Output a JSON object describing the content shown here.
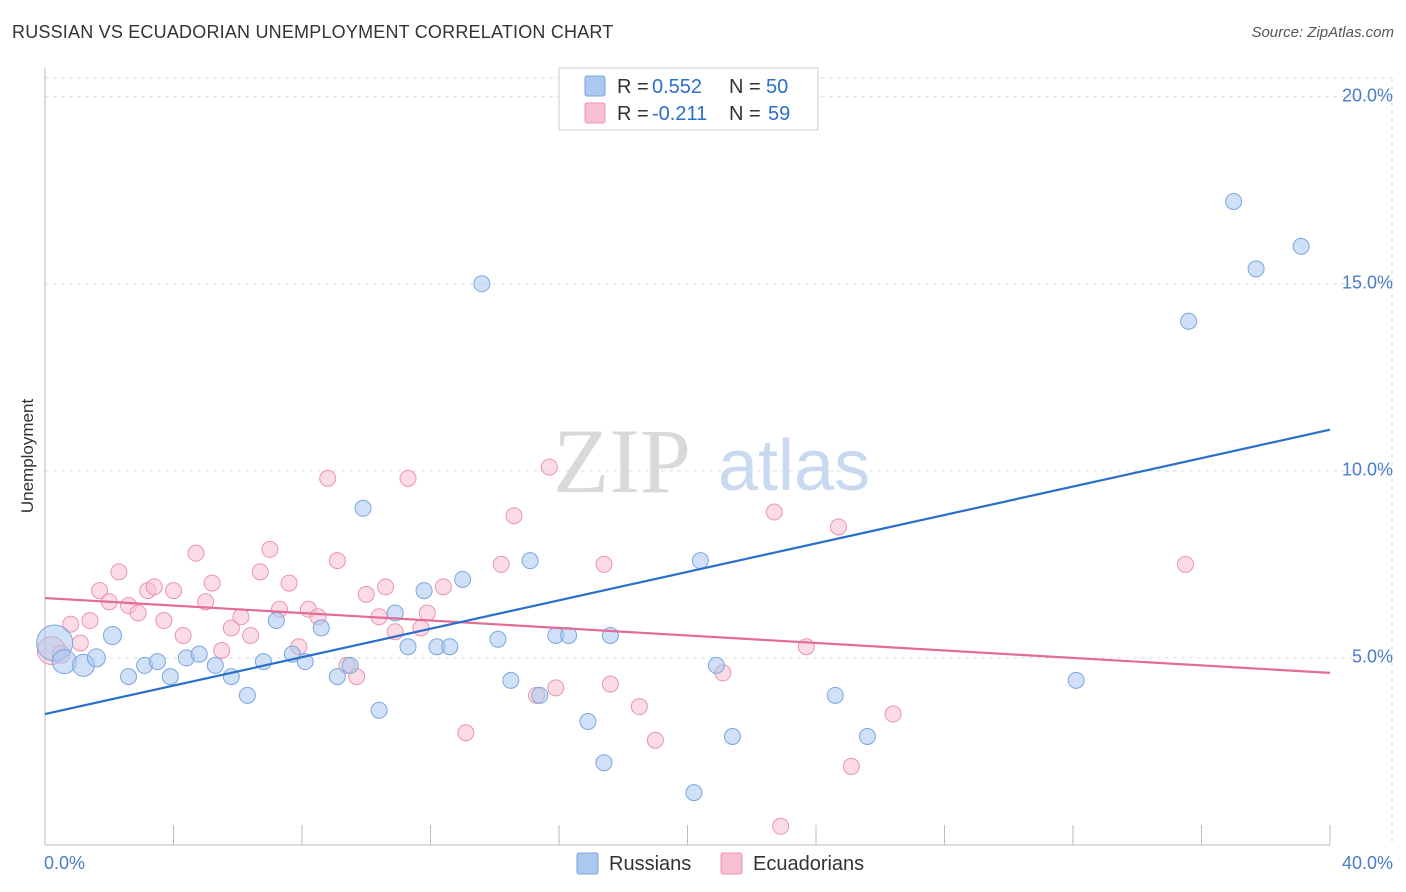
{
  "header": {
    "title": "RUSSIAN VS ECUADORIAN UNEMPLOYMENT CORRELATION CHART",
    "source": "Source: ZipAtlas.com"
  },
  "watermark": {
    "zip": "ZIP",
    "atlas": "atlas"
  },
  "legend_top": {
    "rows": [
      {
        "r_label": "R = ",
        "r_value": "0.552",
        "n_label": "N = ",
        "n_value": "50"
      },
      {
        "r_label": "R = ",
        "r_value": "-0.211",
        "n_label": "N = ",
        "n_value": "59"
      }
    ]
  },
  "legend_bottom": {
    "items": [
      "Russians",
      "Ecuadorians"
    ]
  },
  "colors": {
    "russians_fill": "#aac8f0",
    "russians_stroke": "#7aa6de",
    "russians_line": "#2a6fcc",
    "ecuadorians_fill": "#f7bfd0",
    "ecuadorians_stroke": "#eb94b0",
    "ecuadorians_line": "#e36b96",
    "tick_label": "#4a7cc7",
    "grid": "#dddddd"
  },
  "chart_data": {
    "type": "scatter",
    "title": "RUSSIAN VS ECUADORIAN UNEMPLOYMENT CORRELATION CHART",
    "xlabel": "",
    "ylabel": "Unemployment",
    "xlim": [
      0,
      40
    ],
    "ylim": [
      0,
      20.5
    ],
    "x_tick_labels": [
      "0.0%",
      "40.0%"
    ],
    "y_ticks": [
      5,
      10,
      15,
      20
    ],
    "y_tick_labels": [
      "5.0%",
      "10.0%",
      "15.0%",
      "20.0%"
    ],
    "grid": true,
    "legend_position": "top-center",
    "series": [
      {
        "name": "Russians",
        "r": 0.552,
        "n": 50,
        "trend": {
          "x": [
            0,
            40
          ],
          "y": [
            3.5,
            11.1
          ]
        },
        "points": [
          [
            0.3,
            5.4,
            18
          ],
          [
            0.6,
            4.9,
            12
          ],
          [
            1.2,
            4.8,
            11
          ],
          [
            1.6,
            5.0,
            9
          ],
          [
            2.1,
            5.6,
            9
          ],
          [
            2.6,
            4.5,
            8
          ],
          [
            3.1,
            4.8,
            8
          ],
          [
            3.5,
            4.9,
            8
          ],
          [
            3.9,
            4.5,
            8
          ],
          [
            4.4,
            5.0,
            8
          ],
          [
            4.8,
            5.1,
            8
          ],
          [
            5.3,
            4.8,
            8
          ],
          [
            5.8,
            4.5,
            8
          ],
          [
            6.3,
            4.0,
            8
          ],
          [
            6.8,
            4.9,
            8
          ],
          [
            7.2,
            6.0,
            8
          ],
          [
            7.7,
            5.1,
            8
          ],
          [
            8.1,
            4.9,
            8
          ],
          [
            8.6,
            5.8,
            8
          ],
          [
            9.1,
            4.5,
            8
          ],
          [
            9.5,
            4.8,
            8
          ],
          [
            9.9,
            9.0,
            8
          ],
          [
            10.4,
            3.6,
            8
          ],
          [
            10.9,
            6.2,
            8
          ],
          [
            11.3,
            5.3,
            8
          ],
          [
            11.8,
            6.8,
            8
          ],
          [
            12.2,
            5.3,
            8
          ],
          [
            12.6,
            5.3,
            8
          ],
          [
            13.0,
            7.1,
            8
          ],
          [
            13.6,
            15.0,
            8
          ],
          [
            14.1,
            5.5,
            8
          ],
          [
            14.5,
            4.4,
            8
          ],
          [
            15.1,
            7.6,
            8
          ],
          [
            15.4,
            4.0,
            8
          ],
          [
            15.9,
            5.6,
            8
          ],
          [
            16.3,
            5.6,
            8
          ],
          [
            16.9,
            3.3,
            8
          ],
          [
            17.4,
            2.2,
            8
          ],
          [
            17.6,
            5.6,
            8
          ],
          [
            20.2,
            1.4,
            8
          ],
          [
            20.4,
            7.6,
            8
          ],
          [
            20.9,
            4.8,
            8
          ],
          [
            21.4,
            2.9,
            8
          ],
          [
            24.6,
            4.0,
            8
          ],
          [
            25.6,
            2.9,
            8
          ],
          [
            32.1,
            4.4,
            8
          ],
          [
            35.6,
            14.0,
            8
          ],
          [
            37.0,
            17.2,
            8
          ],
          [
            37.7,
            15.4,
            8
          ],
          [
            39.1,
            16.0,
            8
          ]
        ]
      },
      {
        "name": "Ecuadorians",
        "r": -0.211,
        "n": 59,
        "trend": {
          "x": [
            0,
            40
          ],
          "y": [
            6.6,
            4.6
          ]
        },
        "points": [
          [
            0.2,
            5.2,
            14
          ],
          [
            0.5,
            5.1,
            9
          ],
          [
            0.8,
            5.9,
            8
          ],
          [
            1.1,
            5.4,
            8
          ],
          [
            1.4,
            6.0,
            8
          ],
          [
            1.7,
            6.8,
            8
          ],
          [
            2.0,
            6.5,
            8
          ],
          [
            2.3,
            7.3,
            8
          ],
          [
            2.6,
            6.4,
            8
          ],
          [
            2.9,
            6.2,
            8
          ],
          [
            3.2,
            6.8,
            8
          ],
          [
            3.4,
            6.9,
            8
          ],
          [
            3.7,
            6.0,
            8
          ],
          [
            4.0,
            6.8,
            8
          ],
          [
            4.3,
            5.6,
            8
          ],
          [
            4.7,
            7.8,
            8
          ],
          [
            5.0,
            6.5,
            8
          ],
          [
            5.2,
            7.0,
            8
          ],
          [
            5.5,
            5.2,
            8
          ],
          [
            5.8,
            5.8,
            8
          ],
          [
            6.1,
            6.1,
            8
          ],
          [
            6.4,
            5.6,
            8
          ],
          [
            6.7,
            7.3,
            8
          ],
          [
            7.0,
            7.9,
            8
          ],
          [
            7.3,
            6.3,
            8
          ],
          [
            7.6,
            7.0,
            8
          ],
          [
            7.9,
            5.3,
            8
          ],
          [
            8.2,
            6.3,
            8
          ],
          [
            8.5,
            6.1,
            8
          ],
          [
            8.8,
            9.8,
            8
          ],
          [
            9.1,
            7.6,
            8
          ],
          [
            9.4,
            4.8,
            8
          ],
          [
            9.7,
            4.5,
            8
          ],
          [
            10.0,
            6.7,
            8
          ],
          [
            10.4,
            6.1,
            8
          ],
          [
            10.6,
            6.9,
            8
          ],
          [
            10.9,
            5.7,
            8
          ],
          [
            11.3,
            9.8,
            8
          ],
          [
            11.7,
            5.8,
            8
          ],
          [
            11.9,
            6.2,
            8
          ],
          [
            12.4,
            6.9,
            8
          ],
          [
            13.1,
            3.0,
            8
          ],
          [
            14.2,
            7.5,
            8
          ],
          [
            14.6,
            8.8,
            8
          ],
          [
            15.3,
            4.0,
            8
          ],
          [
            15.7,
            10.1,
            8
          ],
          [
            15.9,
            4.2,
            8
          ],
          [
            17.4,
            7.5,
            8
          ],
          [
            17.6,
            4.3,
            8
          ],
          [
            18.5,
            3.7,
            8
          ],
          [
            19.0,
            2.8,
            8
          ],
          [
            21.1,
            4.6,
            8
          ],
          [
            22.7,
            8.9,
            8
          ],
          [
            22.9,
            0.5,
            8
          ],
          [
            23.7,
            5.3,
            8
          ],
          [
            24.7,
            8.5,
            8
          ],
          [
            25.1,
            2.1,
            8
          ],
          [
            26.4,
            3.5,
            8
          ],
          [
            35.5,
            7.5,
            8
          ]
        ]
      }
    ]
  }
}
